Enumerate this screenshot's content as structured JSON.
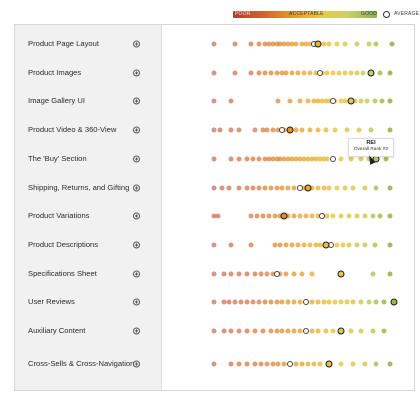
{
  "legend": {
    "poor": "POOR",
    "acceptable": "ACCEPTABLE",
    "good": "GOOD",
    "average": "AVERAGE"
  },
  "colors": {
    "poor": "#b53a2e",
    "acceptable": "#e8a42a",
    "good": "#8fb24e",
    "sidebar_bg": "#f1f1f1"
  },
  "categories": [
    {
      "label": "Product Page Layout",
      "icon": "expand-icon",
      "avg": 0.56,
      "highlight": 0.58,
      "scores": [
        0.05,
        0.16,
        0.24,
        0.28,
        0.31,
        0.33,
        0.35,
        0.37,
        0.39,
        0.41,
        0.43,
        0.45,
        0.47,
        0.5,
        0.52,
        0.54,
        0.58,
        0.61,
        0.64,
        0.68,
        0.72,
        0.78,
        0.84,
        0.88,
        0.96
      ]
    },
    {
      "label": "Product Images",
      "icon": "expand-icon",
      "avg": 0.59,
      "highlight": 0.85,
      "scores": [
        0.05,
        0.16,
        0.24,
        0.28,
        0.31,
        0.34,
        0.37,
        0.4,
        0.42,
        0.45,
        0.48,
        0.51,
        0.54,
        0.57,
        0.6,
        0.63,
        0.66,
        0.69,
        0.72,
        0.75,
        0.78,
        0.81,
        0.85,
        0.9,
        0.95
      ]
    },
    {
      "label": "Image Gallery UI",
      "icon": "expand-icon",
      "avg": 0.66,
      "highlight": 0.75,
      "scores": [
        0.05,
        0.14,
        0.38,
        0.44,
        0.49,
        0.53,
        0.56,
        0.58,
        0.6,
        0.62,
        0.64,
        0.67,
        0.7,
        0.72,
        0.75,
        0.77,
        0.8,
        0.83,
        0.87,
        0.91,
        0.95
      ]
    },
    {
      "label": "Product Video & 360-View",
      "icon": "expand-icon",
      "avg": 0.4,
      "highlight": 0.44,
      "scores": [
        0.05,
        0.08,
        0.14,
        0.18,
        0.26,
        0.3,
        0.32,
        0.35,
        0.38,
        0.41,
        0.44,
        0.47,
        0.5,
        0.54,
        0.58,
        0.62,
        0.67,
        0.73,
        0.79,
        0.85,
        0.95
      ]
    },
    {
      "label": "The 'Buy' Section",
      "icon": "expand-icon",
      "avg": 0.66,
      "highlight": 0.88,
      "scores": [
        0.05,
        0.14,
        0.18,
        0.22,
        0.25,
        0.28,
        0.31,
        0.33,
        0.35,
        0.37,
        0.39,
        0.41,
        0.43,
        0.45,
        0.47,
        0.49,
        0.51,
        0.53,
        0.55,
        0.57,
        0.59,
        0.61,
        0.63,
        0.66,
        0.7,
        0.75,
        0.8,
        0.84,
        0.88,
        0.93
      ]
    },
    {
      "label": "Shipping, Returns, and Gifting",
      "icon": "expand-icon",
      "avg": 0.49,
      "highlight": 0.53,
      "scores": [
        0.05,
        0.09,
        0.13,
        0.18,
        0.22,
        0.25,
        0.28,
        0.31,
        0.34,
        0.37,
        0.4,
        0.43,
        0.46,
        0.49,
        0.51,
        0.53,
        0.55,
        0.58,
        0.61,
        0.64,
        0.68,
        0.72,
        0.76,
        0.82,
        0.88,
        0.95
      ]
    },
    {
      "label": "Product Variations",
      "icon": "expand-icon",
      "avg": 0.6,
      "highlight": 0.41,
      "scores": [
        0.05,
        0.07,
        0.24,
        0.27,
        0.3,
        0.33,
        0.36,
        0.39,
        0.41,
        0.43,
        0.46,
        0.49,
        0.52,
        0.55,
        0.58,
        0.6,
        0.63,
        0.66,
        0.7,
        0.74,
        0.78,
        0.82,
        0.86,
        0.9,
        0.95
      ]
    },
    {
      "label": "Product Descriptions",
      "icon": "expand-icon",
      "avg": 0.65,
      "highlight": 0.62,
      "scores": [
        0.05,
        0.14,
        0.24,
        0.36,
        0.39,
        0.42,
        0.45,
        0.48,
        0.51,
        0.54,
        0.57,
        0.59,
        0.62,
        0.65,
        0.68,
        0.71,
        0.74,
        0.78,
        0.82,
        0.87,
        0.95
      ]
    },
    {
      "label": "Specifications Sheet",
      "icon": "expand-icon",
      "avg": 0.37,
      "highlight": 0.7,
      "scores": [
        0.05,
        0.1,
        0.14,
        0.18,
        0.22,
        0.26,
        0.29,
        0.32,
        0.35,
        0.37,
        0.39,
        0.42,
        0.46,
        0.5,
        0.55,
        0.7,
        0.86,
        0.95
      ]
    },
    {
      "label": "User Reviews",
      "icon": "expand-icon",
      "avg": 0.52,
      "highlight": 0.97,
      "scores": [
        0.05,
        0.1,
        0.13,
        0.16,
        0.19,
        0.22,
        0.25,
        0.28,
        0.31,
        0.34,
        0.37,
        0.4,
        0.43,
        0.46,
        0.49,
        0.52,
        0.55,
        0.58,
        0.61,
        0.64,
        0.67,
        0.7,
        0.73,
        0.76,
        0.8,
        0.84,
        0.88,
        0.92,
        0.97
      ]
    },
    {
      "label": "Auxiliary Content",
      "icon": "expand-icon",
      "avg": 0.52,
      "highlight": 0.7,
      "scores": [
        0.05,
        0.1,
        0.14,
        0.18,
        0.22,
        0.26,
        0.3,
        0.34,
        0.37,
        0.4,
        0.43,
        0.46,
        0.49,
        0.52,
        0.55,
        0.58,
        0.62,
        0.66,
        0.7,
        0.75,
        0.8,
        0.86,
        0.92
      ]
    },
    {
      "label": "Cross-Sells & Cross-Navigation",
      "icon": "expand-icon",
      "avg": 0.44,
      "highlight": 0.64,
      "scores": [
        0.05,
        0.14,
        0.18,
        0.22,
        0.26,
        0.29,
        0.32,
        0.35,
        0.38,
        0.41,
        0.44,
        0.47,
        0.5,
        0.53,
        0.56,
        0.59,
        0.64,
        0.7,
        0.76,
        0.82,
        0.88,
        0.95
      ]
    }
  ],
  "tooltip": {
    "title": "REI",
    "subtitle": "Overall Rank #2"
  }
}
